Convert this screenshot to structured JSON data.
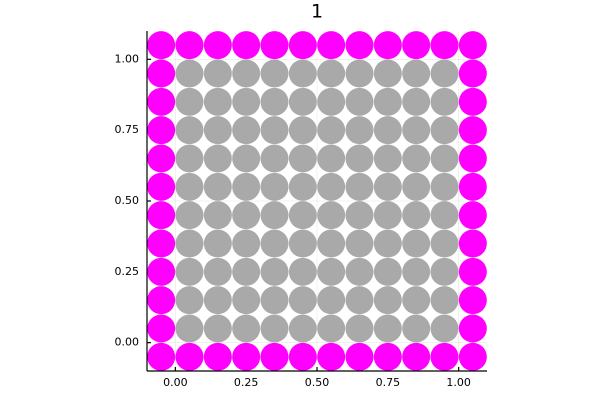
{
  "chart_data": {
    "type": "scatter",
    "title": "1",
    "xlim": [
      -0.1,
      1.1
    ],
    "ylim": [
      -0.1,
      1.1
    ],
    "xticks": [
      {
        "value": 0,
        "label": "0.00"
      },
      {
        "value": 0.25,
        "label": "0.25"
      },
      {
        "value": 0.5,
        "label": "0.50"
      },
      {
        "value": 0.75,
        "label": "0.75"
      },
      {
        "value": 1,
        "label": "1.00"
      }
    ],
    "yticks": [
      {
        "value": 0,
        "label": "0.00"
      },
      {
        "value": 0.25,
        "label": "0.25"
      },
      {
        "value": 0.5,
        "label": "0.50"
      },
      {
        "value": 0.75,
        "label": "0.75"
      },
      {
        "value": 1,
        "label": "1.00"
      }
    ],
    "grid": true,
    "series": [
      {
        "color": "#a9a9a9",
        "x": [
          0.05,
          0.15,
          0.25,
          0.35,
          0.45,
          0.55,
          0.65,
          0.75,
          0.85,
          0.95,
          0.05,
          0.15,
          0.25,
          0.35,
          0.45,
          0.55,
          0.65,
          0.75,
          0.85,
          0.95,
          0.05,
          0.15,
          0.25,
          0.35,
          0.45,
          0.55,
          0.65,
          0.75,
          0.85,
          0.95,
          0.05,
          0.15,
          0.25,
          0.35,
          0.45,
          0.55,
          0.65,
          0.75,
          0.85,
          0.95,
          0.05,
          0.15,
          0.25,
          0.35,
          0.45,
          0.55,
          0.65,
          0.75,
          0.85,
          0.95,
          0.05,
          0.15,
          0.25,
          0.35,
          0.45,
          0.55,
          0.65,
          0.75,
          0.85,
          0.95,
          0.05,
          0.15,
          0.25,
          0.35,
          0.45,
          0.55,
          0.65,
          0.75,
          0.85,
          0.95,
          0.05,
          0.15,
          0.25,
          0.35,
          0.45,
          0.55,
          0.65,
          0.75,
          0.85,
          0.95,
          0.05,
          0.15,
          0.25,
          0.35,
          0.45,
          0.55,
          0.65,
          0.75,
          0.85,
          0.95,
          0.05,
          0.15,
          0.25,
          0.35,
          0.45,
          0.55,
          0.65,
          0.75,
          0.85,
          0.95
        ],
        "values": [
          0.95,
          0.95,
          0.95,
          0.95,
          0.95,
          0.95,
          0.95,
          0.95,
          0.95,
          0.95,
          0.85,
          0.85,
          0.85,
          0.85,
          0.85,
          0.85,
          0.85,
          0.85,
          0.85,
          0.85,
          0.75,
          0.75,
          0.75,
          0.75,
          0.75,
          0.75,
          0.75,
          0.75,
          0.75,
          0.75,
          0.65,
          0.65,
          0.65,
          0.65,
          0.65,
          0.65,
          0.65,
          0.65,
          0.65,
          0.65,
          0.55,
          0.55,
          0.55,
          0.55,
          0.55,
          0.55,
          0.55,
          0.55,
          0.55,
          0.55,
          0.45,
          0.45,
          0.45,
          0.45,
          0.45,
          0.45,
          0.45,
          0.45,
          0.45,
          0.45,
          0.35,
          0.35,
          0.35,
          0.35,
          0.35,
          0.35,
          0.35,
          0.35,
          0.35,
          0.35,
          0.25,
          0.25,
          0.25,
          0.25,
          0.25,
          0.25,
          0.25,
          0.25,
          0.25,
          0.25,
          0.15,
          0.15,
          0.15,
          0.15,
          0.15,
          0.15,
          0.15,
          0.15,
          0.15,
          0.15,
          0.05,
          0.05,
          0.05,
          0.05,
          0.05,
          0.05,
          0.05,
          0.05,
          0.05,
          0.05
        ]
      },
      {
        "color": "#ff00ff",
        "x": [
          -0.05,
          0.05,
          0.15,
          0.25,
          0.35,
          0.45,
          0.55,
          0.65,
          0.75,
          0.85,
          0.95,
          1.05,
          -0.05,
          0.05,
          0.15,
          0.25,
          0.35,
          0.45,
          0.55,
          0.65,
          0.75,
          0.85,
          0.95,
          1.05,
          -0.05,
          -0.05,
          -0.05,
          -0.05,
          -0.05,
          -0.05,
          -0.05,
          -0.05,
          -0.05,
          -0.05,
          1.05,
          1.05,
          1.05,
          1.05,
          1.05,
          1.05,
          1.05,
          1.05,
          1.05,
          1.05
        ],
        "values": [
          1.05,
          1.05,
          1.05,
          1.05,
          1.05,
          1.05,
          1.05,
          1.05,
          1.05,
          1.05,
          1.05,
          1.05,
          -0.05,
          -0.05,
          -0.05,
          -0.05,
          -0.05,
          -0.05,
          -0.05,
          -0.05,
          -0.05,
          -0.05,
          -0.05,
          -0.05,
          0.95,
          0.85,
          0.75,
          0.65,
          0.55,
          0.45,
          0.35,
          0.25,
          0.15,
          0.05,
          0.95,
          0.85,
          0.75,
          0.65,
          0.55,
          0.45,
          0.35,
          0.25,
          0.15,
          0.05
        ]
      }
    ]
  }
}
